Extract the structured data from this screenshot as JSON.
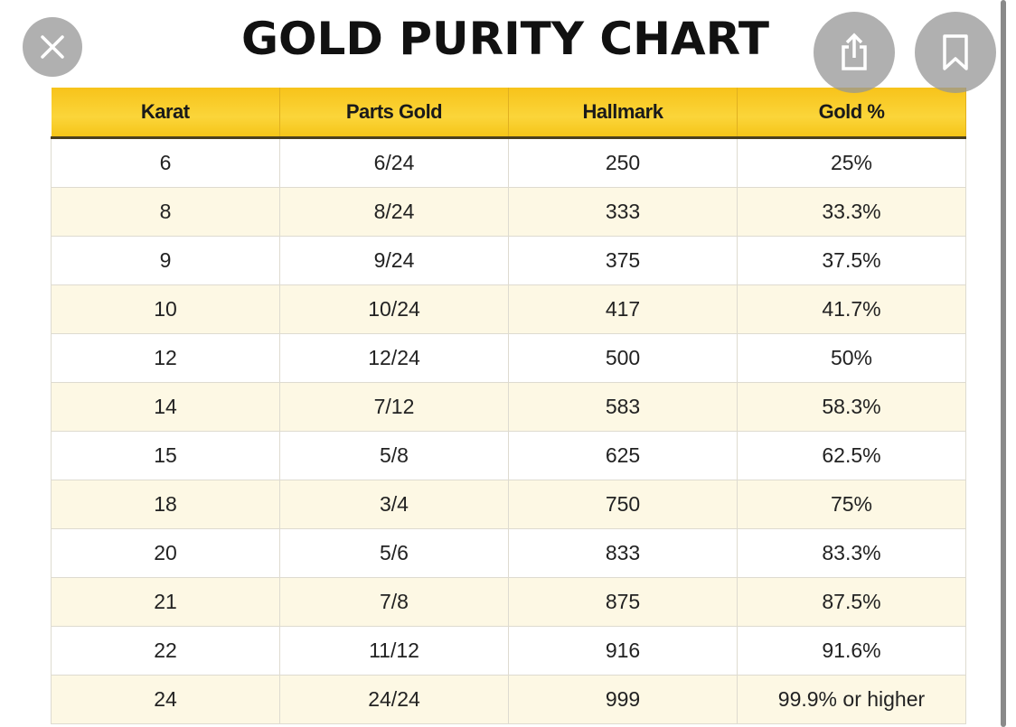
{
  "title": "GOLD PURITY CHART",
  "icons": {
    "close": "close-icon",
    "share": "share-icon",
    "bookmark": "bookmark-icon"
  },
  "colors": {
    "header": "#f9cb2a",
    "alt_row": "#fdf8e4"
  },
  "table": {
    "headers": [
      "Karat",
      "Parts Gold",
      "Hallmark",
      "Gold %"
    ],
    "rows": [
      [
        "6",
        "6/24",
        "250",
        "25%"
      ],
      [
        "8",
        "8/24",
        "333",
        "33.3%"
      ],
      [
        "9",
        "9/24",
        "375",
        "37.5%"
      ],
      [
        "10",
        "10/24",
        "417",
        "41.7%"
      ],
      [
        "12",
        "12/24",
        "500",
        "50%"
      ],
      [
        "14",
        "7/12",
        "583",
        "58.3%"
      ],
      [
        "15",
        "5/8",
        "625",
        "62.5%"
      ],
      [
        "18",
        "3/4",
        "750",
        "75%"
      ],
      [
        "20",
        "5/6",
        "833",
        "83.3%"
      ],
      [
        "21",
        "7/8",
        "875",
        "87.5%"
      ],
      [
        "22",
        "11/12",
        "916",
        "91.6%"
      ],
      [
        "24",
        "24/24",
        "999",
        "99.9% or higher"
      ]
    ]
  }
}
